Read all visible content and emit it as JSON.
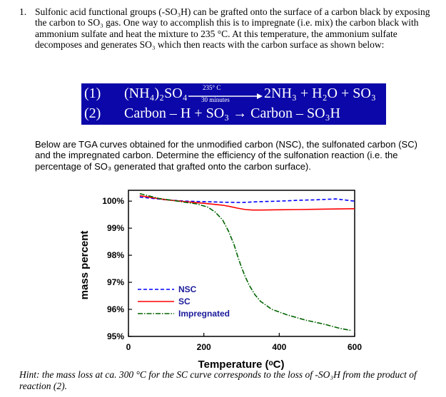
{
  "question": {
    "number": "1.",
    "text": "Sulfonic acid functional groups (-SO₃H) can be grafted onto the surface of a carbon black by exposing the carbon to SO₃ gas. One way to accomplish this is to impregnate (i.e. mix) the carbon black with ammonium sulfate and heat the mixture to 235 °C. At this temperature, the ammonium sulfate decomposes and generates SO₃ which then reacts with the carbon surface as shown below:"
  },
  "equations": {
    "eq1": {
      "number": "(1)",
      "reactant": "(NH₄)₂SO₄",
      "condition_top": "235° C",
      "condition_bottom": "30 minutes",
      "product": "2NH₃ + H₂O + SO₃"
    },
    "eq2": {
      "number": "(2)",
      "text": "Carbon – H + SO₃ → Carbon – SO₃H"
    },
    "box_color": "#0b07a8"
  },
  "paragraph": "Below are TGA curves obtained for the unmodified carbon (NSC), the sulfonated carbon (SC) and the impregnated carbon. Determine the efficiency of the sulfonation reaction (i.e. the percentage of SO₃ generated that grafted onto the carbon surface).",
  "chart_data": {
    "type": "line",
    "xlabel": "Temperature (ᵒC)",
    "ylabel": "mass percent",
    "xlim": [
      0,
      600
    ],
    "ylim": [
      95,
      100.4
    ],
    "x_ticks": [
      0,
      200,
      400,
      600
    ],
    "x_tick_labels": [
      "0",
      "200",
      "400",
      "600"
    ],
    "y_ticks": [
      95,
      96,
      97,
      98,
      99,
      100
    ],
    "y_tick_labels": [
      "95%",
      "96%",
      "97%",
      "98%",
      "99%",
      "100%"
    ],
    "legend_position": "bottom-left",
    "series": [
      {
        "name": "NSC",
        "color": "#0000ff",
        "style": "dashed",
        "x": [
          30,
          100,
          150,
          200,
          250,
          300,
          350,
          400,
          450,
          500,
          550,
          600
        ],
        "y": [
          100.15,
          100.05,
          100.0,
          99.98,
          99.96,
          99.95,
          99.98,
          100.0,
          100.03,
          100.05,
          100.08,
          100.0
        ]
      },
      {
        "name": "SC",
        "color": "#ff0000",
        "style": "solid",
        "x": [
          30,
          100,
          150,
          200,
          250,
          270,
          290,
          310,
          330,
          350,
          400,
          450,
          500,
          550,
          600
        ],
        "y": [
          100.2,
          100.05,
          99.98,
          99.92,
          99.85,
          99.8,
          99.74,
          99.69,
          99.67,
          99.67,
          99.68,
          99.69,
          99.7,
          99.71,
          99.72
        ]
      },
      {
        "name": "Impregnated",
        "color": "#006400",
        "style": "dashdot",
        "x": [
          30,
          80,
          130,
          180,
          210,
          230,
          250,
          265,
          280,
          290,
          300,
          310,
          320,
          335,
          350,
          380,
          420,
          470,
          520,
          560,
          590
        ],
        "y": [
          100.28,
          100.1,
          100.0,
          99.9,
          99.78,
          99.6,
          99.3,
          98.9,
          98.4,
          97.95,
          97.55,
          97.2,
          96.9,
          96.55,
          96.3,
          96.0,
          95.8,
          95.6,
          95.45,
          95.3,
          95.22
        ]
      }
    ]
  },
  "hint": "Hint: the mass loss at ca. 300 °C for the SC curve corresponds to the loss of -SO₃H from the product of reaction (2)."
}
